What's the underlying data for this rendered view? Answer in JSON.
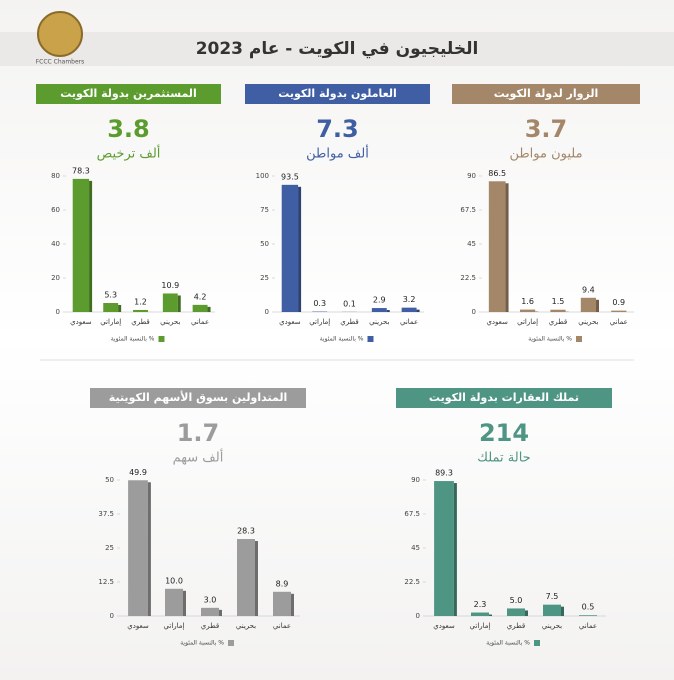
{
  "header": {
    "title": "الخليجيون في الكويت - عام 2023",
    "logo_text": "FCCC Chambers"
  },
  "chart_data": [
    {
      "type": "bar",
      "title": "الزوار لدولة الكويت",
      "headline": 3.7,
      "subtitle": "مليون مواطن",
      "categories": [
        "سعودي",
        "إماراتي",
        "قطري",
        "بحريني",
        "عماني"
      ],
      "series": [
        {
          "name": "بالنسبة المئوية %",
          "color": "#a48669",
          "values": [
            86.5,
            1.6,
            1.5,
            9.4,
            0.9
          ],
          "value_labels": [
            "86.5",
            "1.6",
            "1.5",
            "9.4",
            "0.9"
          ]
        }
      ],
      "ylim": [
        0,
        90
      ],
      "yticks": [
        0,
        22.5,
        45,
        67.5,
        90
      ]
    },
    {
      "type": "bar",
      "title": "العاملون بدولة الكويت",
      "headline": 7.3,
      "subtitle": "ألف مواطن",
      "categories": [
        "سعودي",
        "إماراتي",
        "قطري",
        "بحريني",
        "عماني"
      ],
      "series": [
        {
          "name": "بالنسبة المئوية %",
          "color": "#3f5ea3",
          "values": [
            93.5,
            0.3,
            0.1,
            2.9,
            3.2
          ],
          "value_labels": [
            "93.5",
            "0.3",
            "0.1",
            "2.9",
            "3.2"
          ]
        }
      ],
      "ylim": [
        0,
        100
      ],
      "yticks": [
        0,
        25,
        50,
        75,
        100
      ]
    },
    {
      "type": "bar",
      "title": "المستثمرين بدولة الكويت",
      "headline": 3.8,
      "subtitle": "ألف ترخيص",
      "categories": [
        "سعودي",
        "إماراتي",
        "قطري",
        "بحريني",
        "عماني"
      ],
      "series": [
        {
          "name": "بالنسبة المئوية %",
          "color": "#5c9c2e",
          "values": [
            78.3,
            5.3,
            1.2,
            10.9,
            4.2
          ],
          "value_labels": [
            "78.3",
            "5.3",
            "1.2",
            "10.9",
            "4.2"
          ]
        }
      ],
      "ylim": [
        0,
        80
      ],
      "yticks": [
        0,
        20,
        40,
        60,
        80
      ]
    },
    {
      "type": "bar",
      "title": "تملك العقارات بدولة الكويت",
      "headline": 214,
      "subtitle": "حالة تملك",
      "categories": [
        "سعودي",
        "إماراتي",
        "قطري",
        "بحريني",
        "عماني"
      ],
      "series": [
        {
          "name": "بالنسبة المئوية %",
          "color": "#4f9584",
          "values": [
            89.3,
            2.3,
            5.0,
            7.5,
            0.5
          ],
          "value_labels": [
            "89.3",
            "2.3",
            "5.0",
            "7.5",
            "0.5"
          ]
        }
      ],
      "ylim": [
        0,
        90
      ],
      "yticks": [
        0,
        22.5,
        45,
        67.5,
        90
      ]
    },
    {
      "type": "bar",
      "title": "المتداولين بسوق الأسهم الكويتية",
      "headline": 1.7,
      "subtitle": "ألف سهم",
      "categories": [
        "سعودي",
        "إماراتي",
        "قطري",
        "بحريني",
        "عماني"
      ],
      "series": [
        {
          "name": "بالنسبة المئوية %",
          "color": "#9c9c9c",
          "values": [
            49.9,
            10.0,
            3.0,
            28.3,
            8.9
          ],
          "value_labels": [
            "49.9",
            "10.0",
            "3.0",
            "28.3",
            "8.9"
          ]
        }
      ],
      "ylim": [
        0,
        50
      ],
      "yticks": [
        0,
        12.5,
        25,
        37.5,
        50
      ]
    }
  ]
}
